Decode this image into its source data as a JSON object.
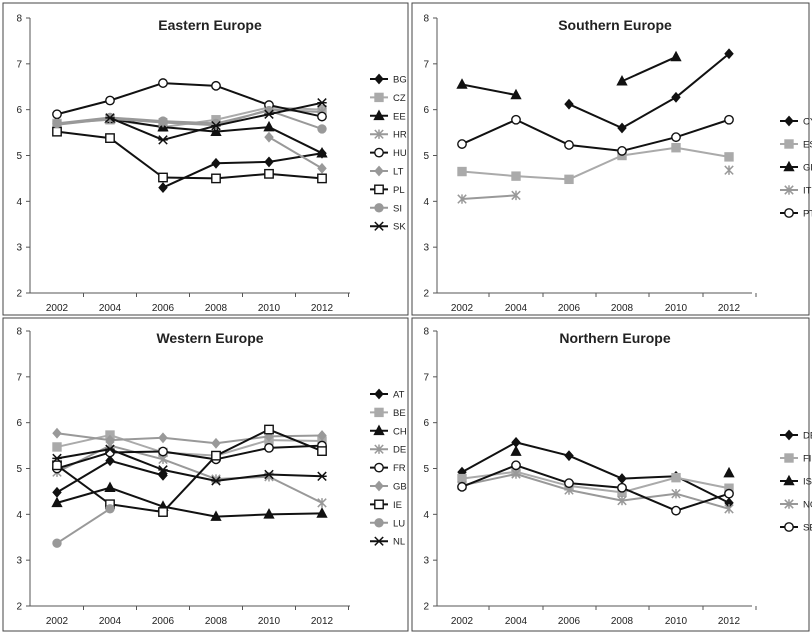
{
  "chart_data": [
    {
      "type": "line",
      "title": "Eastern Europe",
      "x": [
        "2002",
        "2004",
        "2006",
        "2008",
        "2010",
        "2012"
      ],
      "ylim": [
        2,
        8
      ],
      "yticks": [
        2,
        3,
        4,
        5,
        6,
        7,
        8
      ],
      "grid": false,
      "legend": "right",
      "series": [
        {
          "name": "BG",
          "color": "#111111",
          "marker": "diamond-filled",
          "values": [
            null,
            null,
            4.3,
            4.83,
            4.86,
            5.05
          ]
        },
        {
          "name": "CZ",
          "color": "#aaaaaa",
          "marker": "square-filled",
          "values": [
            5.7,
            5.78,
            5.62,
            5.78,
            6.05,
            6.0
          ]
        },
        {
          "name": "EE",
          "color": "#111111",
          "marker": "triangle-filled",
          "values": [
            null,
            5.8,
            5.62,
            5.52,
            5.62,
            5.05
          ]
        },
        {
          "name": "HR",
          "color": "#999999",
          "marker": "star",
          "values": [
            5.67,
            5.8,
            5.72,
            5.66,
            6.0,
            5.95
          ]
        },
        {
          "name": "HU",
          "color": "#111111",
          "marker": "circle-open",
          "values": [
            5.9,
            6.2,
            6.58,
            6.52,
            6.1,
            5.85
          ]
        },
        {
          "name": "LT",
          "color": "#999999",
          "marker": "diamond-filled",
          "values": [
            null,
            null,
            null,
            null,
            5.4,
            4.72
          ]
        },
        {
          "name": "PL",
          "color": "#111111",
          "marker": "square-open",
          "values": [
            5.52,
            5.38,
            4.52,
            4.5,
            4.6,
            4.5
          ]
        },
        {
          "name": "SI",
          "color": "#999999",
          "marker": "circle-filled",
          "values": [
            5.7,
            5.83,
            5.75,
            5.7,
            5.98,
            5.58
          ]
        },
        {
          "name": "SK",
          "color": "#111111",
          "marker": "asterisk",
          "values": [
            null,
            5.82,
            5.34,
            5.65,
            5.9,
            6.15
          ]
        }
      ]
    },
    {
      "type": "line",
      "title": "Southern Europe",
      "x": [
        "2002",
        "2004",
        "2006",
        "2008",
        "2010",
        "2012"
      ],
      "ylim": [
        2,
        8
      ],
      "yticks": [
        2,
        3,
        4,
        5,
        6,
        7,
        8
      ],
      "grid": false,
      "legend": "right",
      "series": [
        {
          "name": "CY",
          "color": "#111111",
          "marker": "diamond-filled",
          "values": [
            null,
            null,
            6.12,
            5.6,
            6.27,
            7.22
          ]
        },
        {
          "name": "ES",
          "color": "#aaaaaa",
          "marker": "square-filled",
          "values": [
            4.65,
            4.55,
            4.48,
            5.0,
            5.17,
            4.97
          ]
        },
        {
          "name": "GR",
          "color": "#111111",
          "marker": "triangle-filled",
          "values": [
            6.55,
            6.32,
            null,
            6.62,
            7.15,
            null
          ]
        },
        {
          "name": "IT",
          "color": "#999999",
          "marker": "star",
          "values": [
            4.05,
            4.13,
            null,
            null,
            null,
            4.68
          ]
        },
        {
          "name": "PT",
          "color": "#111111",
          "marker": "circle-open",
          "values": [
            5.25,
            5.78,
            5.23,
            5.1,
            5.4,
            5.78
          ]
        }
      ]
    },
    {
      "type": "line",
      "title": "Western Europe",
      "x": [
        "2002",
        "2004",
        "2006",
        "2008",
        "2010",
        "2012"
      ],
      "ylim": [
        2,
        8
      ],
      "yticks": [
        2,
        3,
        4,
        5,
        6,
        7,
        8
      ],
      "grid": false,
      "legend": "right",
      "series": [
        {
          "name": "AT",
          "color": "#111111",
          "marker": "diamond-filled",
          "values": [
            4.48,
            5.17,
            4.85,
            null,
            null,
            null
          ]
        },
        {
          "name": "BE",
          "color": "#aaaaaa",
          "marker": "square-filled",
          "values": [
            5.47,
            5.73,
            5.35,
            5.28,
            5.62,
            5.6
          ]
        },
        {
          "name": "CH",
          "color": "#111111",
          "marker": "triangle-filled",
          "values": [
            4.25,
            4.58,
            4.17,
            3.95,
            4.0,
            4.02
          ]
        },
        {
          "name": "DE",
          "color": "#999999",
          "marker": "star",
          "values": [
            4.92,
            5.5,
            5.2,
            4.77,
            4.82,
            4.25
          ]
        },
        {
          "name": "FR",
          "color": "#111111",
          "marker": "circle-open",
          "values": [
            5.0,
            5.35,
            5.37,
            5.2,
            5.45,
            5.5
          ]
        },
        {
          "name": "GB",
          "color": "#999999",
          "marker": "diamond-filled",
          "values": [
            5.77,
            5.62,
            5.67,
            5.55,
            5.7,
            5.72
          ]
        },
        {
          "name": "IE",
          "color": "#111111",
          "marker": "square-open",
          "values": [
            5.07,
            4.22,
            4.05,
            5.28,
            5.85,
            5.38
          ]
        },
        {
          "name": "LU",
          "color": "#999999",
          "marker": "circle-filled",
          "values": [
            3.37,
            4.12,
            null,
            null,
            null,
            null
          ]
        },
        {
          "name": "NL",
          "color": "#111111",
          "marker": "asterisk",
          "values": [
            5.22,
            5.42,
            4.97,
            4.73,
            4.87,
            4.83
          ]
        }
      ]
    },
    {
      "type": "line",
      "title": "Northern Europe",
      "x": [
        "2002",
        "2004",
        "2006",
        "2008",
        "2010",
        "2012"
      ],
      "ylim": [
        2,
        8
      ],
      "yticks": [
        2,
        3,
        4,
        5,
        6,
        7,
        8
      ],
      "grid": false,
      "legend": "right",
      "series": [
        {
          "name": "DE",
          "color": "#111111",
          "marker": "diamond-filled",
          "values": [
            4.92,
            5.57,
            5.28,
            4.78,
            4.83,
            4.25
          ]
        },
        {
          "name": "FI",
          "color": "#aaaaaa",
          "marker": "square-filled",
          "values": [
            4.78,
            4.93,
            4.62,
            4.48,
            4.8,
            4.57
          ]
        },
        {
          "name": "IS",
          "color": "#111111",
          "marker": "triangle-filled",
          "values": [
            null,
            5.37,
            null,
            null,
            null,
            4.9
          ]
        },
        {
          "name": "NO",
          "color": "#999999",
          "marker": "star",
          "values": [
            4.63,
            4.88,
            4.53,
            4.3,
            4.45,
            4.12
          ]
        },
        {
          "name": "SE",
          "color": "#111111",
          "marker": "circle-open",
          "values": [
            4.6,
            5.07,
            4.68,
            4.58,
            4.08,
            4.45
          ]
        }
      ]
    }
  ]
}
